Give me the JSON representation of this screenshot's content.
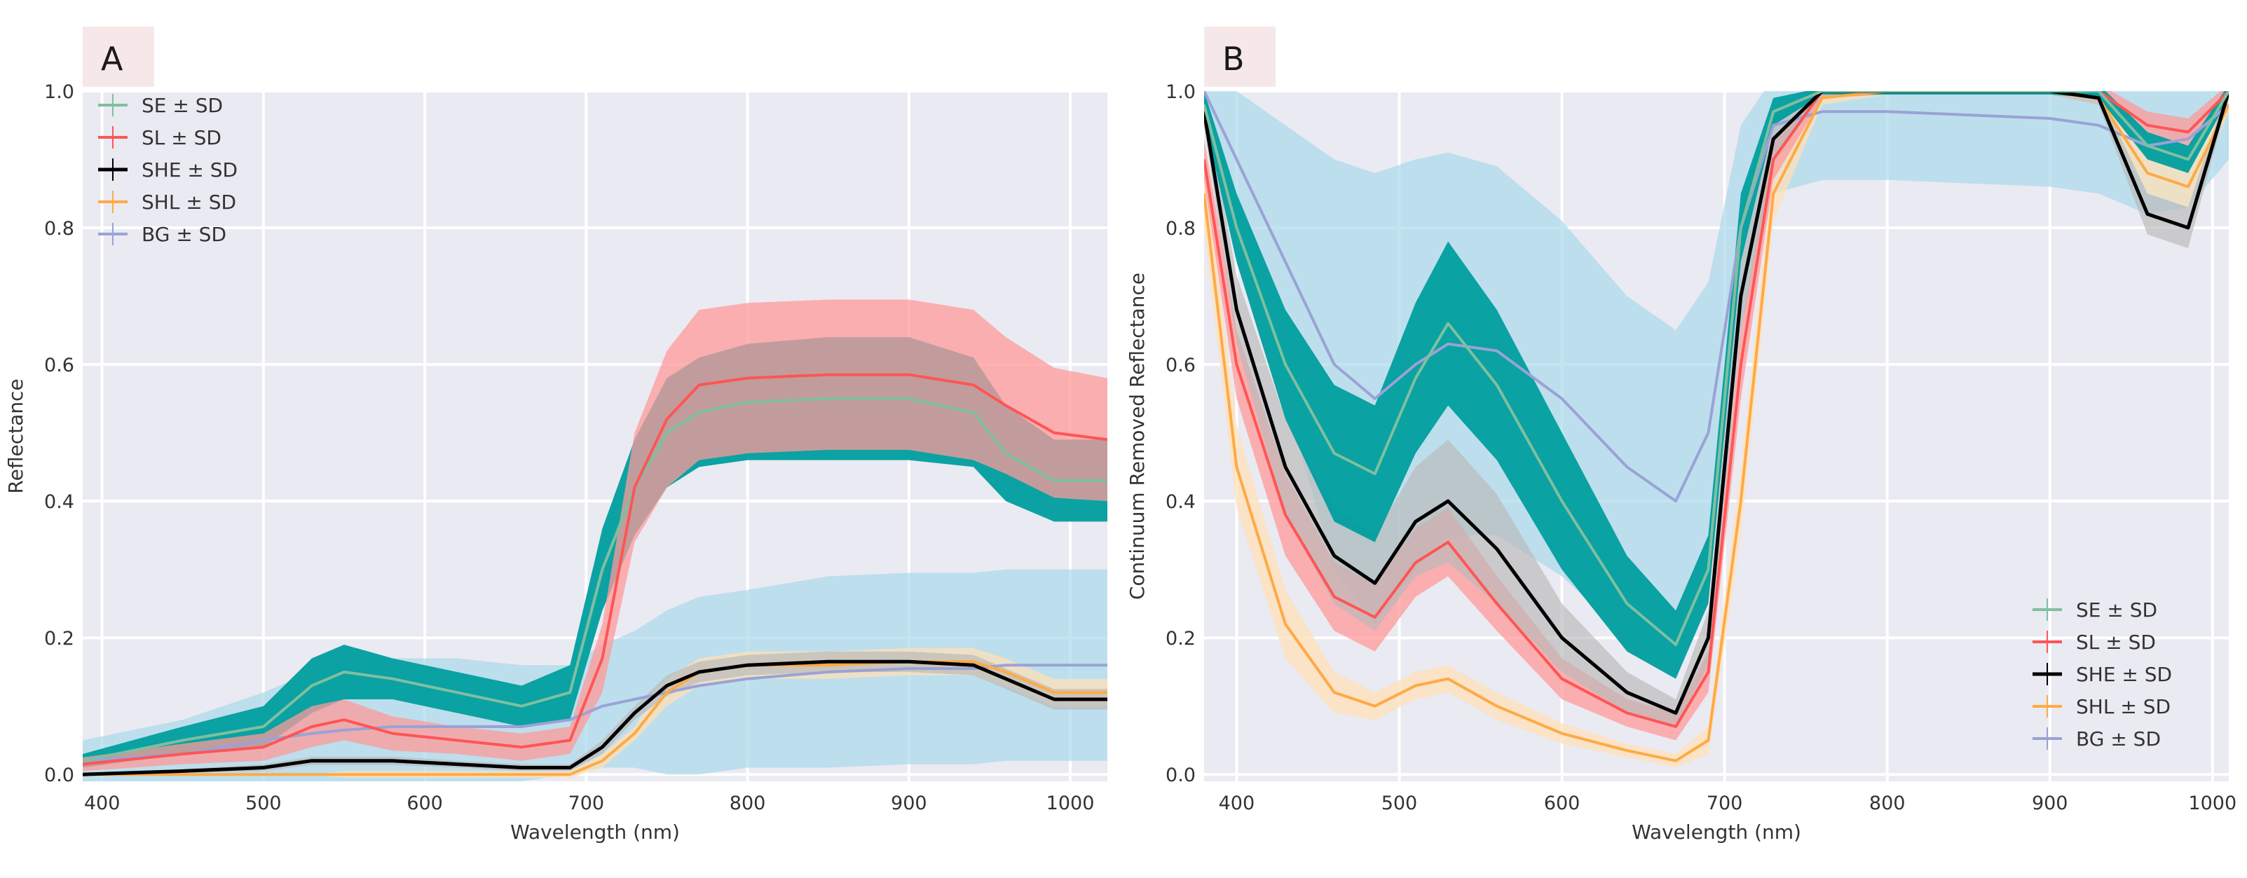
{
  "colors": {
    "SE": "#009e9e",
    "SE_line": "#7fbf9f",
    "SL": "#ff5555",
    "SL_band": "#ff9a9a",
    "SHE": "#000000",
    "SHE_band": "#b8b8b8",
    "SHL": "#ffaa44",
    "SHL_band": "#ffe0b8",
    "BG": "#9aa2d6",
    "BG_band": "#aad8ea"
  },
  "chart_data": [
    {
      "id": "A",
      "panel_label": "A",
      "type": "line",
      "xlabel": "Wavelength (nm)",
      "ylabel": "Reflectance",
      "xlim": [
        388,
        1023
      ],
      "ylim": [
        -0.01,
        1.0
      ],
      "xticks": [
        400,
        500,
        600,
        700,
        800,
        900,
        1000
      ],
      "yticks": [
        0.0,
        0.2,
        0.4,
        0.6,
        0.8,
        1.0
      ],
      "ytick_labels": [
        "0.0",
        "0.2",
        "0.4",
        "0.6",
        "0.8",
        "1.0"
      ],
      "legend_position": "top-left",
      "legend": [
        "SE ± SD",
        "SL ± SD",
        "SHE ± SD",
        "SHL ± SD",
        "BG ± SD"
      ],
      "x": [
        388,
        450,
        500,
        530,
        550,
        580,
        620,
        660,
        690,
        710,
        730,
        750,
        770,
        800,
        850,
        900,
        940,
        960,
        990,
        1023
      ],
      "series": [
        {
          "name": "BG",
          "mean": [
            0.02,
            0.03,
            0.05,
            0.06,
            0.065,
            0.07,
            0.07,
            0.07,
            0.08,
            0.1,
            0.11,
            0.12,
            0.13,
            0.14,
            0.15,
            0.155,
            0.155,
            0.16,
            0.16,
            0.16
          ],
          "sd": [
            0.03,
            0.05,
            0.07,
            0.09,
            0.1,
            0.1,
            0.1,
            0.09,
            0.08,
            0.09,
            0.1,
            0.12,
            0.13,
            0.13,
            0.14,
            0.14,
            0.14,
            0.14,
            0.14,
            0.14
          ]
        },
        {
          "name": "SHL",
          "mean": [
            0.0,
            0.0,
            0.0,
            0.0,
            0.0,
            0.0,
            0.0,
            0.0,
            0.0,
            0.02,
            0.06,
            0.12,
            0.15,
            0.16,
            0.16,
            0.165,
            0.165,
            0.15,
            0.12,
            0.12
          ],
          "sd": [
            0.0,
            0.0,
            0.0,
            0.0,
            0.005,
            0.005,
            0.005,
            0.005,
            0.005,
            0.01,
            0.01,
            0.02,
            0.02,
            0.02,
            0.02,
            0.02,
            0.02,
            0.02,
            0.02,
            0.02
          ]
        },
        {
          "name": "SHE",
          "mean": [
            0.0,
            0.005,
            0.01,
            0.02,
            0.02,
            0.02,
            0.015,
            0.01,
            0.01,
            0.04,
            0.09,
            0.13,
            0.15,
            0.16,
            0.165,
            0.165,
            0.16,
            0.14,
            0.11,
            0.11
          ],
          "sd": [
            0.002,
            0.003,
            0.005,
            0.006,
            0.006,
            0.006,
            0.005,
            0.005,
            0.005,
            0.01,
            0.01,
            0.015,
            0.015,
            0.015,
            0.015,
            0.015,
            0.015,
            0.015,
            0.015,
            0.015
          ]
        },
        {
          "name": "SE",
          "mean": [
            0.02,
            0.05,
            0.07,
            0.13,
            0.15,
            0.14,
            0.12,
            0.1,
            0.12,
            0.3,
            0.42,
            0.5,
            0.53,
            0.545,
            0.55,
            0.55,
            0.53,
            0.47,
            0.43,
            0.43
          ],
          "sd": [
            0.01,
            0.02,
            0.03,
            0.04,
            0.04,
            0.03,
            0.03,
            0.03,
            0.04,
            0.06,
            0.07,
            0.08,
            0.08,
            0.085,
            0.09,
            0.09,
            0.08,
            0.07,
            0.06,
            0.06
          ]
        },
        {
          "name": "SL",
          "mean": [
            0.015,
            0.03,
            0.04,
            0.07,
            0.08,
            0.06,
            0.05,
            0.04,
            0.05,
            0.17,
            0.42,
            0.52,
            0.57,
            0.58,
            0.585,
            0.585,
            0.57,
            0.54,
            0.5,
            0.49
          ],
          "sd": [
            0.01,
            0.015,
            0.02,
            0.03,
            0.03,
            0.025,
            0.02,
            0.02,
            0.02,
            0.05,
            0.08,
            0.1,
            0.11,
            0.11,
            0.11,
            0.11,
            0.11,
            0.1,
            0.095,
            0.09
          ]
        }
      ]
    },
    {
      "id": "B",
      "panel_label": "B",
      "type": "line",
      "xlabel": "Wavelength (nm)",
      "ylabel": "Continuum Removed Reflectance",
      "xlim": [
        380,
        1010
      ],
      "ylim": [
        -0.01,
        1.0
      ],
      "xticks": [
        400,
        500,
        600,
        700,
        800,
        900,
        1000
      ],
      "yticks": [
        0.0,
        0.2,
        0.4,
        0.6,
        0.8,
        1.0
      ],
      "ytick_labels": [
        "0.0",
        "0.2",
        "0.4",
        "0.6",
        "0.8",
        "1.0"
      ],
      "legend_position": "bottom-right",
      "legend": [
        "SE ± SD",
        "SL ± SD",
        "SHE ± SD",
        "SHL ± SD",
        "BG ± SD"
      ],
      "x": [
        380,
        400,
        430,
        460,
        485,
        510,
        530,
        560,
        600,
        640,
        670,
        690,
        710,
        730,
        760,
        800,
        850,
        900,
        930,
        960,
        985,
        1010
      ],
      "series": [
        {
          "name": "BG",
          "mean": [
            1.0,
            0.9,
            0.75,
            0.6,
            0.55,
            0.6,
            0.63,
            0.62,
            0.55,
            0.45,
            0.4,
            0.5,
            0.8,
            0.95,
            0.97,
            0.97,
            0.965,
            0.96,
            0.95,
            0.92,
            0.93,
            0.98
          ],
          "sd": [
            0.05,
            0.1,
            0.2,
            0.3,
            0.33,
            0.3,
            0.28,
            0.27,
            0.26,
            0.25,
            0.25,
            0.22,
            0.15,
            0.1,
            0.1,
            0.1,
            0.1,
            0.1,
            0.1,
            0.1,
            0.1,
            0.08
          ]
        },
        {
          "name": "SHL",
          "mean": [
            0.85,
            0.45,
            0.22,
            0.12,
            0.1,
            0.13,
            0.14,
            0.1,
            0.06,
            0.035,
            0.02,
            0.05,
            0.4,
            0.85,
            0.99,
            1.0,
            1.0,
            1.0,
            0.99,
            0.88,
            0.86,
            0.98
          ],
          "sd": [
            0.05,
            0.06,
            0.05,
            0.03,
            0.02,
            0.02,
            0.02,
            0.02,
            0.015,
            0.01,
            0.01,
            0.02,
            0.05,
            0.04,
            0.01,
            0.005,
            0.005,
            0.005,
            0.01,
            0.03,
            0.03,
            0.01
          ]
        },
        {
          "name": "SL",
          "mean": [
            0.9,
            0.6,
            0.38,
            0.26,
            0.23,
            0.31,
            0.34,
            0.25,
            0.14,
            0.09,
            0.07,
            0.15,
            0.6,
            0.9,
            1.0,
            1.0,
            1.0,
            1.0,
            1.0,
            0.95,
            0.94,
            1.0
          ],
          "sd": [
            0.03,
            0.05,
            0.06,
            0.05,
            0.05,
            0.05,
            0.05,
            0.04,
            0.03,
            0.02,
            0.02,
            0.03,
            0.05,
            0.03,
            0.01,
            0.005,
            0.005,
            0.005,
            0.01,
            0.02,
            0.02,
            0.01
          ]
        },
        {
          "name": "SHE",
          "mean": [
            0.97,
            0.68,
            0.45,
            0.32,
            0.28,
            0.37,
            0.4,
            0.33,
            0.2,
            0.12,
            0.09,
            0.2,
            0.7,
            0.93,
            1.0,
            1.0,
            1.0,
            1.0,
            0.99,
            0.82,
            0.8,
            1.0
          ],
          "sd": [
            0.02,
            0.05,
            0.07,
            0.07,
            0.07,
            0.08,
            0.09,
            0.08,
            0.05,
            0.03,
            0.02,
            0.04,
            0.05,
            0.03,
            0.01,
            0.005,
            0.005,
            0.005,
            0.01,
            0.03,
            0.03,
            0.01
          ]
        },
        {
          "name": "SE",
          "mean": [
            0.98,
            0.8,
            0.6,
            0.47,
            0.44,
            0.58,
            0.66,
            0.57,
            0.4,
            0.25,
            0.19,
            0.3,
            0.8,
            0.97,
            1.0,
            1.0,
            1.0,
            1.0,
            1.0,
            0.92,
            0.9,
            1.0
          ],
          "sd": [
            0.02,
            0.05,
            0.08,
            0.1,
            0.1,
            0.11,
            0.12,
            0.11,
            0.1,
            0.07,
            0.05,
            0.05,
            0.05,
            0.02,
            0.005,
            0.005,
            0.005,
            0.005,
            0.01,
            0.02,
            0.02,
            0.01
          ]
        }
      ]
    }
  ]
}
